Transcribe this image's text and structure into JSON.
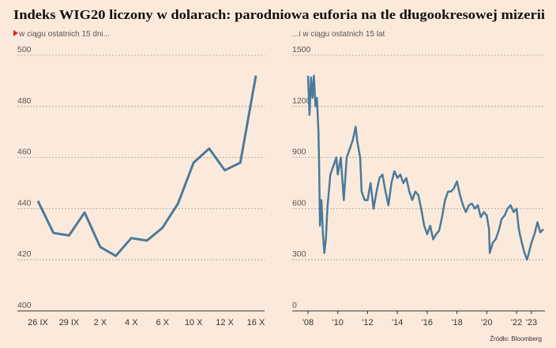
{
  "title": "Indeks WIG20 liczony w dolarach: parodniowa euforia na tle długookresowej mizerii",
  "source": "Źródło: Bloomberg",
  "chart_data": [
    {
      "type": "line",
      "subtitle": "w ciągu ostatnich 15 dni...",
      "categories": [
        "26 IX",
        null,
        "29 IX",
        null,
        "2 X",
        null,
        "4 X",
        null,
        "6 X",
        null,
        "10 X",
        null,
        "12 X",
        null,
        "16 X"
      ],
      "series": [
        {
          "color": "#4a7a9b",
          "values": [
            443,
            430.5,
            429.5,
            438.5,
            425,
            421.5,
            428.5,
            427.5,
            432.5,
            442,
            458,
            463.5,
            455,
            458,
            492
          ]
        }
      ],
      "ylim": [
        400,
        500
      ],
      "yticks": [
        400,
        420,
        440,
        460,
        480,
        500
      ],
      "grid": true
    },
    {
      "type": "line",
      "subtitle": "...i w ciągu ostatnich 15 lat",
      "x": [
        2008.0,
        2008.1,
        2008.2,
        2008.3,
        2008.4,
        2008.5,
        2008.6,
        2008.7,
        2008.75,
        2008.8,
        2008.9,
        2009.0,
        2009.1,
        2009.2,
        2009.3,
        2009.5,
        2009.7,
        2009.9,
        2010.0,
        2010.2,
        2010.4,
        2010.6,
        2010.8,
        2011.0,
        2011.2,
        2011.3,
        2011.5,
        2011.6,
        2011.8,
        2012.0,
        2012.2,
        2012.4,
        2012.6,
        2012.8,
        2013.0,
        2013.2,
        2013.4,
        2013.6,
        2013.8,
        2014.0,
        2014.2,
        2014.4,
        2014.6,
        2014.8,
        2015.0,
        2015.2,
        2015.4,
        2015.6,
        2015.8,
        2016.0,
        2016.2,
        2016.4,
        2016.6,
        2016.8,
        2017.0,
        2017.2,
        2017.4,
        2017.6,
        2017.8,
        2018.0,
        2018.2,
        2018.4,
        2018.6,
        2018.8,
        2019.0,
        2019.2,
        2019.4,
        2019.6,
        2019.8,
        2020.0,
        2020.15,
        2020.2,
        2020.4,
        2020.6,
        2020.8,
        2021.0,
        2021.2,
        2021.4,
        2021.6,
        2021.8,
        2022.0,
        2022.15,
        2022.3,
        2022.5,
        2022.7,
        2022.8,
        2023.0,
        2023.2,
        2023.4,
        2023.6,
        2023.8
      ],
      "series": [
        {
          "color": "#4a7a9b",
          "values": [
            1380,
            1150,
            1370,
            1250,
            1380,
            1200,
            1250,
            1050,
            850,
            500,
            650,
            450,
            340,
            420,
            600,
            800,
            850,
            900,
            800,
            900,
            650,
            900,
            950,
            1000,
            1080,
            1000,
            900,
            700,
            650,
            650,
            750,
            600,
            700,
            780,
            800,
            700,
            620,
            750,
            820,
            780,
            800,
            750,
            780,
            700,
            650,
            700,
            680,
            600,
            500,
            450,
            500,
            420,
            450,
            470,
            550,
            650,
            700,
            700,
            720,
            760,
            680,
            620,
            580,
            620,
            630,
            600,
            620,
            550,
            580,
            560,
            480,
            340,
            400,
            420,
            470,
            540,
            560,
            600,
            620,
            580,
            600,
            480,
            420,
            350,
            300,
            330,
            400,
            450,
            520,
            460,
            480
          ]
        }
      ],
      "xlim": [
        2008,
        2023.8
      ],
      "xticks": [
        {
          "value": 2008,
          "label": "'08"
        },
        {
          "value": 2010,
          "label": "'10"
        },
        {
          "value": 2012,
          "label": "'12"
        },
        {
          "value": 2014,
          "label": "'14"
        },
        {
          "value": 2016,
          "label": "'16"
        },
        {
          "value": 2018,
          "label": "'18"
        },
        {
          "value": 2020,
          "label": "'20"
        },
        {
          "value": 2022,
          "label": "'22"
        },
        {
          "value": 2023,
          "label": "'23"
        }
      ],
      "ylim": [
        0,
        1500
      ],
      "yticks": [
        0,
        300,
        600,
        900,
        1200,
        1500
      ],
      "grid": true
    }
  ]
}
